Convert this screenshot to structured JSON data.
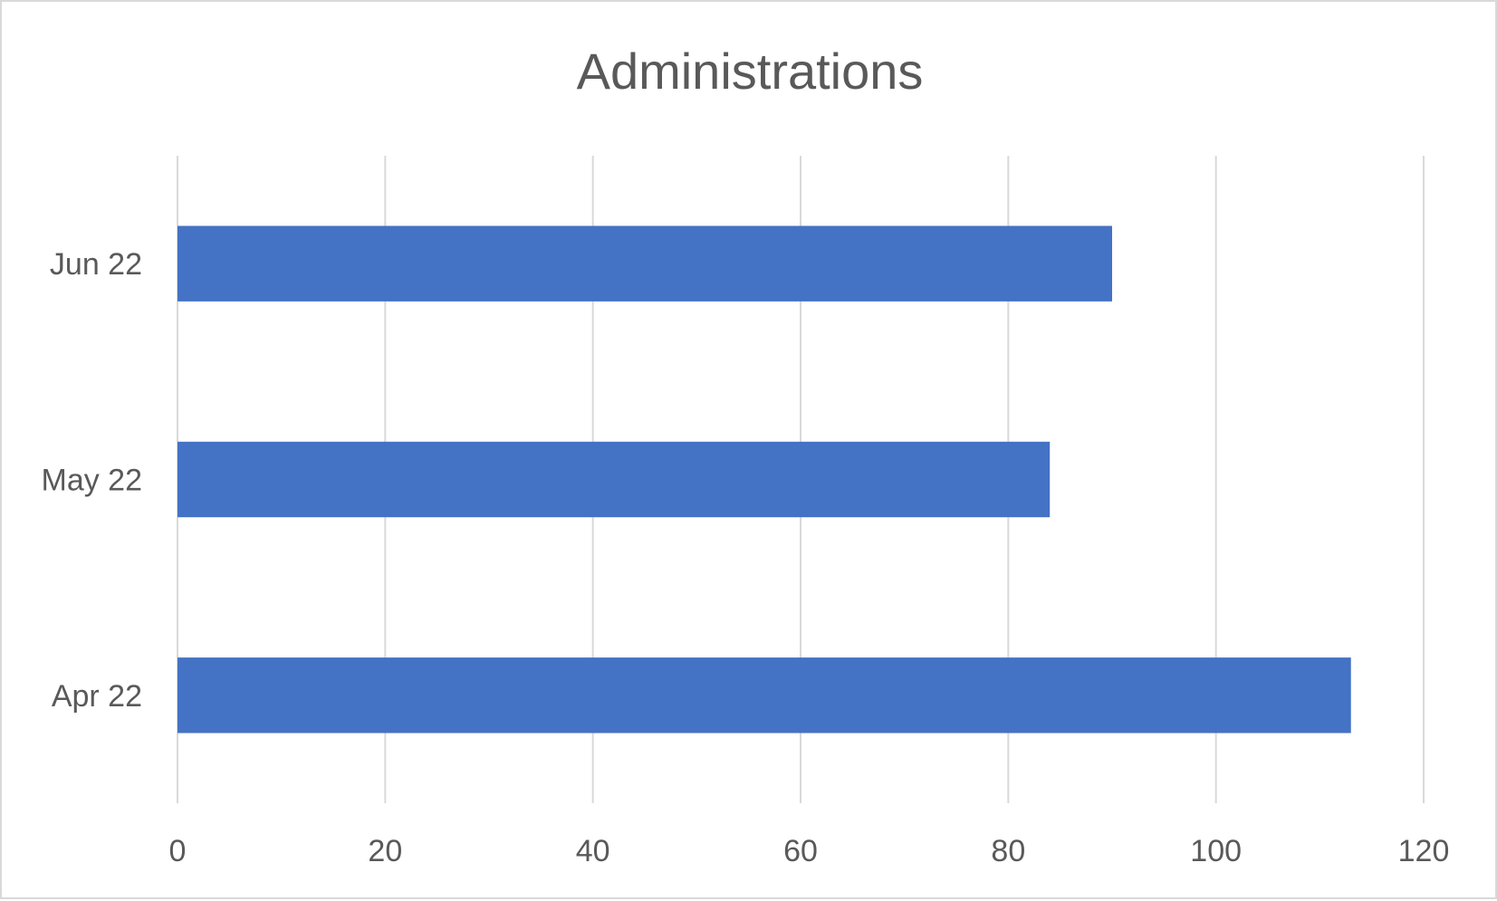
{
  "chart_data": {
    "type": "bar",
    "orientation": "horizontal",
    "title": "Administrations",
    "xlabel": "",
    "ylabel": "",
    "categories": [
      "Apr 22",
      "May 22",
      "Jun 22"
    ],
    "values": [
      113,
      84,
      90
    ],
    "xlim": [
      0,
      120
    ],
    "x_ticks": [
      0,
      20,
      40,
      60,
      80,
      100,
      120
    ],
    "grid": true,
    "legend": "none",
    "bar_color": "#4472C4"
  }
}
